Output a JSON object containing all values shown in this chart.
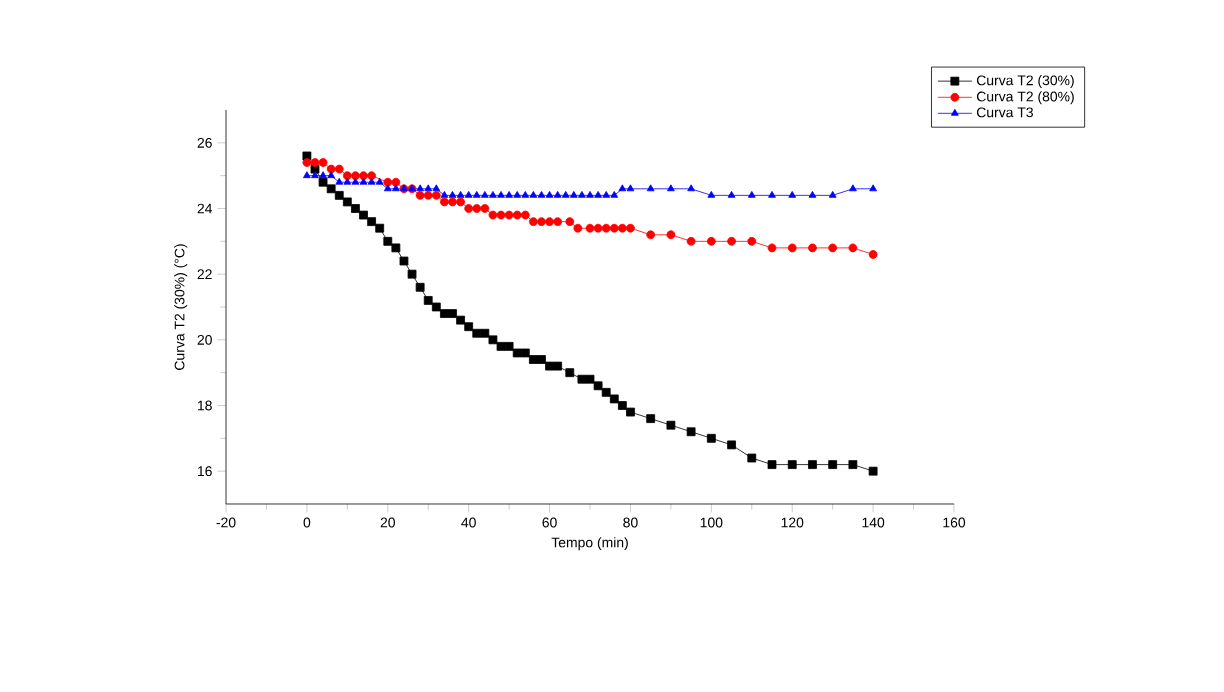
{
  "chart_data": {
    "type": "line",
    "xlabel": "Tempo (min)",
    "ylabel": "Curva T2 (30%) (°C)",
    "xlim": [
      -20,
      160
    ],
    "ylim": [
      15,
      27
    ],
    "xticks": [
      -20,
      0,
      20,
      40,
      60,
      80,
      100,
      120,
      140,
      160
    ],
    "yticks": [
      16,
      18,
      20,
      22,
      24,
      26
    ],
    "legend": "top right",
    "grid": false,
    "series": [
      {
        "name": "Curva T2 (30%)",
        "color": "#000000",
        "marker": "square",
        "x": [
          0,
          2,
          4,
          6,
          8,
          10,
          12,
          14,
          16,
          18,
          20,
          22,
          24,
          26,
          28,
          30,
          32,
          34,
          36,
          38,
          40,
          42,
          44,
          46,
          48,
          50,
          52,
          54,
          56,
          58,
          60,
          62,
          65,
          68,
          70,
          72,
          74,
          76,
          78,
          80,
          85,
          90,
          95,
          100,
          105,
          110,
          115,
          120,
          125,
          130,
          135,
          140
        ],
        "values": [
          25.6,
          25.2,
          24.8,
          24.6,
          24.4,
          24.2,
          24.0,
          23.8,
          23.6,
          23.4,
          23.0,
          22.8,
          22.4,
          22.0,
          21.6,
          21.2,
          21.0,
          20.8,
          20.8,
          20.6,
          20.4,
          20.2,
          20.2,
          20.0,
          19.8,
          19.8,
          19.6,
          19.6,
          19.4,
          19.4,
          19.2,
          19.2,
          19.0,
          18.8,
          18.8,
          18.6,
          18.4,
          18.2,
          18.0,
          17.8,
          17.6,
          17.4,
          17.2,
          17.0,
          16.8,
          16.4,
          16.2,
          16.2,
          16.2,
          16.2,
          16.2,
          16.0
        ]
      },
      {
        "name": "Curva T2 (80%)",
        "color": "#ff0000",
        "marker": "circle",
        "x": [
          0,
          2,
          4,
          6,
          8,
          10,
          12,
          14,
          16,
          18,
          20,
          22,
          24,
          26,
          28,
          30,
          32,
          34,
          36,
          38,
          40,
          42,
          44,
          46,
          48,
          50,
          52,
          54,
          56,
          58,
          60,
          62,
          65,
          67,
          70,
          72,
          74,
          76,
          78,
          80,
          85,
          90,
          95,
          100,
          105,
          110,
          115,
          120,
          125,
          130,
          135,
          140
        ],
        "values": [
          25.4,
          25.4,
          25.4,
          25.2,
          25.2,
          25.0,
          25.0,
          25.0,
          25.0,
          null,
          24.8,
          24.8,
          24.6,
          24.6,
          24.4,
          24.4,
          24.4,
          24.2,
          24.2,
          24.2,
          24.0,
          24.0,
          24.0,
          23.8,
          23.8,
          23.8,
          23.8,
          23.8,
          23.6,
          23.6,
          23.6,
          23.6,
          23.6,
          23.4,
          23.4,
          23.4,
          23.4,
          23.4,
          23.4,
          23.4,
          23.2,
          23.2,
          23.0,
          23.0,
          23.0,
          23.0,
          22.8,
          22.8,
          22.8,
          22.8,
          22.8,
          22.6
        ]
      },
      {
        "name": "Curva T3",
        "color": "#0000ff",
        "marker": "triangle",
        "x": [
          0,
          2,
          4,
          6,
          8,
          10,
          12,
          14,
          16,
          18,
          20,
          22,
          24,
          26,
          28,
          30,
          32,
          34,
          36,
          38,
          40,
          42,
          44,
          46,
          48,
          50,
          52,
          54,
          56,
          58,
          60,
          62,
          64,
          66,
          68,
          70,
          72,
          74,
          76,
          78,
          80,
          85,
          90,
          95,
          100,
          105,
          110,
          115,
          120,
          125,
          130,
          135,
          140
        ],
        "values": [
          25.0,
          25.0,
          25.0,
          25.0,
          24.8,
          24.8,
          24.8,
          24.8,
          24.8,
          24.8,
          24.6,
          24.6,
          24.6,
          24.6,
          24.6,
          24.6,
          24.6,
          24.4,
          24.4,
          24.4,
          24.4,
          24.4,
          24.4,
          24.4,
          24.4,
          24.4,
          24.4,
          24.4,
          24.4,
          24.4,
          24.4,
          24.4,
          24.4,
          24.4,
          24.4,
          24.4,
          24.4,
          24.4,
          24.4,
          24.6,
          24.6,
          24.6,
          24.6,
          24.6,
          24.4,
          24.4,
          24.4,
          24.4,
          24.4,
          24.4,
          24.4,
          24.6,
          24.6
        ]
      }
    ]
  }
}
